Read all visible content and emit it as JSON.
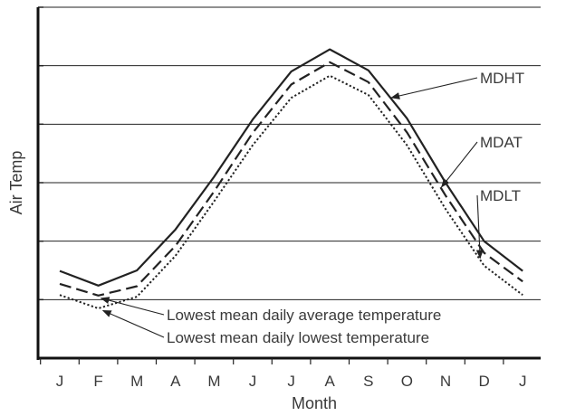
{
  "chart_data": {
    "type": "line",
    "title": "",
    "xlabel": "Month",
    "ylabel": "Air Temp",
    "categories": [
      "J",
      "F",
      "M",
      "A",
      "M",
      "J",
      "J",
      "A",
      "S",
      "O",
      "N",
      "D",
      "J"
    ],
    "ylim": [
      0,
      6
    ],
    "grid": "horizontal",
    "series": [
      {
        "name": "MDHT",
        "style": "solid",
        "values": [
          1.49,
          1.24,
          1.5,
          2.2,
          3.1,
          4.08,
          4.9,
          5.28,
          4.92,
          4.1,
          3.0,
          2.0,
          1.49
        ]
      },
      {
        "name": "MDAT",
        "style": "dashed",
        "values": [
          1.27,
          1.07,
          1.23,
          1.92,
          2.85,
          3.85,
          4.68,
          5.06,
          4.72,
          3.86,
          2.78,
          1.8,
          1.31
        ]
      },
      {
        "name": "MDLT",
        "style": "dotted",
        "values": [
          1.08,
          0.85,
          1.05,
          1.75,
          2.68,
          3.64,
          4.45,
          4.83,
          4.5,
          3.64,
          2.55,
          1.58,
          1.08
        ]
      }
    ],
    "annotations": [
      {
        "text": "Lowest mean daily average temperature",
        "target_series": "MDAT",
        "target_category_index": 1
      },
      {
        "text": "Lowest mean daily lowest temperature",
        "target_series": "MDLT",
        "target_category_index": 1
      }
    ]
  }
}
